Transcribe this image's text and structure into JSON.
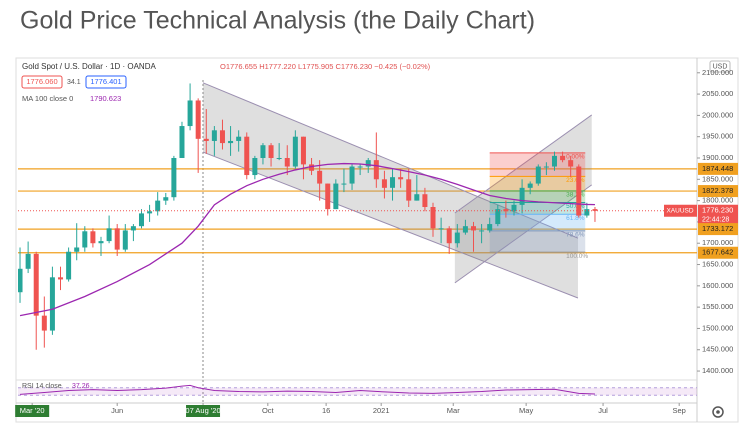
{
  "chart_data": {
    "type": "candlestick",
    "title": "Gold Price Technical Analysis (the Daily Chart)",
    "symbol": "Gold Spot / U.S. Dollar · 1D · OANDA",
    "ohlc_text": "O1776.655 H1777.220 L1775.905 C1776.230 −0.425 (−0.02%)",
    "bid_label": "1776.060",
    "spread_label": "34.1",
    "ask_label": "1776.401",
    "currency": "USD",
    "up_color": "#26a69a",
    "down_color": "#ef5350",
    "xlim": [
      -0.25,
      83.6
    ],
    "ylim": [
      1379,
      2130
    ],
    "yticks": [
      {
        "value": 2100,
        "label": "2100.000"
      },
      {
        "value": 2050,
        "label": "2050.000"
      },
      {
        "value": 2000,
        "label": "2000.000"
      },
      {
        "value": 1950,
        "label": "1950.000"
      },
      {
        "value": 1900,
        "label": "1900.000"
      },
      {
        "value": 1850,
        "label": "1850.000"
      },
      {
        "value": 1800,
        "label": "1800.000"
      },
      {
        "value": 1750,
        "label": "1750.000"
      },
      {
        "value": 1700,
        "label": "1700.000"
      },
      {
        "value": 1650,
        "label": "1650.000"
      },
      {
        "value": 1600,
        "label": "1600.000"
      },
      {
        "value": 1550,
        "label": "1550.000"
      },
      {
        "value": 1500,
        "label": "1500.000"
      },
      {
        "value": 1450,
        "label": "1450.000"
      },
      {
        "value": 1400,
        "label": "1400.000"
      }
    ],
    "xticks": [
      {
        "value": 1.5,
        "label": "Mar '20",
        "highlight": true
      },
      {
        "value": 12,
        "label": "Jun"
      },
      {
        "value": 22.6,
        "label": "07 Aug '20",
        "highlight": true
      },
      {
        "value": 30.6,
        "label": "Oct"
      },
      {
        "value": 37.8,
        "label": "16"
      },
      {
        "value": 44.6,
        "label": "2021"
      },
      {
        "value": 53.5,
        "label": "Mar"
      },
      {
        "value": 62.5,
        "label": "May"
      },
      {
        "value": 72,
        "label": "Jul"
      },
      {
        "value": 81.4,
        "label": "Sep"
      }
    ],
    "candles": {
      "open": [
        1585,
        1640,
        1675,
        1530,
        1495,
        1620,
        1615,
        1680,
        1690,
        1728,
        1700,
        1705,
        1735,
        1685,
        1730,
        1740,
        1770,
        1775,
        1800,
        1808,
        1900,
        1975,
        2035,
        1945,
        1940,
        1965,
        1935,
        1940,
        1950,
        1860,
        1900,
        1930,
        1900,
        1900,
        1880,
        1950,
        1885,
        1870,
        1840,
        1780,
        1840,
        1840,
        1880,
        1880,
        1895,
        1850,
        1830,
        1855,
        1850,
        1800,
        1815,
        1785,
        1735,
        1735,
        1700,
        1725,
        1740,
        1730,
        1730,
        1745,
        1780,
        1775,
        1790,
        1830,
        1840,
        1880,
        1880,
        1905,
        1895,
        1880,
        1765,
        1780
      ],
      "high": [
        1690,
        1704,
        1680,
        1575,
        1645,
        1645,
        1690,
        1747,
        1740,
        1735,
        1715,
        1765,
        1745,
        1745,
        1745,
        1780,
        1790,
        1820,
        1818,
        1905,
        1985,
        2075,
        2040,
        2015,
        1975,
        1990,
        1975,
        1965,
        1960,
        1905,
        1935,
        1935,
        1935,
        1930,
        1965,
        1950,
        1900,
        1895,
        1840,
        1850,
        1875,
        1885,
        1885,
        1900,
        1960,
        1870,
        1875,
        1875,
        1875,
        1860,
        1830,
        1795,
        1760,
        1740,
        1745,
        1755,
        1750,
        1745,
        1760,
        1790,
        1800,
        1800,
        1850,
        1845,
        1885,
        1890,
        1915,
        1915,
        1905,
        1885,
        1795,
        1785
      ],
      "low": [
        1560,
        1630,
        1450,
        1455,
        1485,
        1590,
        1610,
        1660,
        1680,
        1690,
        1670,
        1700,
        1670,
        1680,
        1705,
        1735,
        1750,
        1765,
        1790,
        1800,
        1900,
        1965,
        1865,
        1910,
        1905,
        1920,
        1905,
        1915,
        1850,
        1850,
        1885,
        1880,
        1895,
        1860,
        1875,
        1850,
        1860,
        1800,
        1765,
        1780,
        1820,
        1825,
        1860,
        1865,
        1830,
        1805,
        1800,
        1830,
        1785,
        1800,
        1775,
        1715,
        1700,
        1675,
        1690,
        1720,
        1680,
        1700,
        1725,
        1740,
        1760,
        1765,
        1770,
        1815,
        1835,
        1860,
        1870,
        1890,
        1855,
        1760,
        1760,
        1750
      ],
      "close": [
        1640,
        1675,
        1530,
        1495,
        1620,
        1615,
        1680,
        1690,
        1728,
        1700,
        1705,
        1735,
        1685,
        1730,
        1740,
        1770,
        1775,
        1800,
        1808,
        1900,
        1975,
        2035,
        1945,
        1940,
        1965,
        1935,
        1940,
        1950,
        1860,
        1900,
        1930,
        1900,
        1900,
        1880,
        1950,
        1885,
        1870,
        1840,
        1780,
        1840,
        1840,
        1880,
        1880,
        1895,
        1850,
        1830,
        1855,
        1850,
        1800,
        1815,
        1785,
        1735,
        1735,
        1700,
        1725,
        1740,
        1730,
        1730,
        1745,
        1780,
        1775,
        1790,
        1830,
        1840,
        1880,
        1880,
        1905,
        1895,
        1880,
        1765,
        1780,
        1776
      ]
    },
    "ma": {
      "name": "MA 100 close 0",
      "last": 1790.623,
      "color": "#9c27b0",
      "x": [
        0,
        4,
        8,
        12,
        16,
        20,
        22,
        24,
        26,
        28,
        30,
        32,
        34,
        36,
        38,
        40,
        42,
        44,
        46,
        48,
        50,
        52,
        54,
        56,
        58,
        60,
        62,
        64,
        66,
        68,
        70,
        71
      ],
      "values": [
        1530,
        1545,
        1575,
        1610,
        1650,
        1700,
        1740,
        1790,
        1815,
        1835,
        1850,
        1862,
        1872,
        1880,
        1885,
        1887,
        1886,
        1882,
        1875,
        1868,
        1860,
        1850,
        1838,
        1825,
        1812,
        1805,
        1800,
        1797,
        1795,
        1793,
        1791,
        1790.6
      ]
    },
    "levels": {
      "color": "#f0a020",
      "values": [
        1874.448,
        1822.378,
        1733.172,
        1677.642
      ]
    },
    "last_price": {
      "value": 1776.23,
      "label": "1776.230",
      "symbol": "XAUUSD",
      "countdown": "22:44:28",
      "color": "#ef5350"
    },
    "channels": [
      {
        "x": [
          22.6,
          68.9
        ],
        "upper": [
          2076.5,
          1712
        ],
        "lower": [
          1914,
          1571.5
        ],
        "color": "#9b8fb0"
      },
      {
        "x": [
          53.7,
          70.6
        ],
        "upper": [
          1771,
          2001
        ],
        "lower": [
          1607,
          1837
        ],
        "color": "#9b8fb0"
      }
    ],
    "fib": {
      "x": [
        58,
        69.8
      ],
      "prices": [
        1912,
        1679
      ],
      "levels": [
        0,
        23.6,
        38.2,
        50,
        61.8,
        78.6,
        100
      ],
      "level_labels": [
        "0.00%",
        "23.6%",
        "38.2%",
        "50.0%",
        "61.8%",
        "78.6%",
        "100.0%"
      ],
      "colors": [
        "#ef5350",
        "#ff9800",
        "#4caf50",
        "#26a69a",
        "#64b5f6",
        "#7e95b8",
        "#999999"
      ]
    },
    "rsi": {
      "name": "RSI 14 close",
      "last": 37.26,
      "color": "#9c27b0",
      "band": [
        30,
        70
      ],
      "x": [
        0,
        3,
        6,
        9,
        12,
        15,
        18,
        20,
        21,
        22,
        24,
        27,
        30,
        33,
        36,
        39,
        42,
        45,
        48,
        51,
        54,
        57,
        60,
        63,
        66,
        69,
        71
      ],
      "values": [
        35,
        45,
        55,
        60,
        55,
        60,
        68,
        78,
        82,
        70,
        55,
        50,
        48,
        52,
        50,
        45,
        55,
        48,
        42,
        40,
        45,
        50,
        58,
        60,
        62,
        40,
        37
      ]
    }
  }
}
